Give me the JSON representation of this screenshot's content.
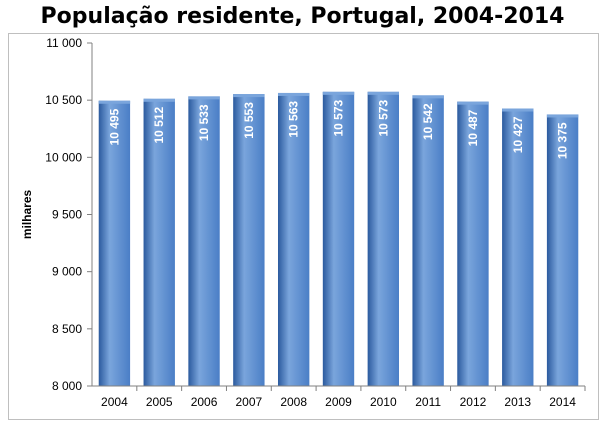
{
  "chart_data": {
    "type": "bar",
    "title": "População residente, Portugal, 2004-2014",
    "xlabel": "",
    "ylabel": "milhares",
    "ylim": [
      8000,
      11000
    ],
    "yticks": [
      8000,
      8500,
      9000,
      9500,
      10000,
      10500,
      11000
    ],
    "ytick_labels": [
      "8 000",
      "8 500",
      "9 000",
      "9 500",
      "10 000",
      "10 500",
      "11 000"
    ],
    "categories": [
      "2004",
      "2005",
      "2006",
      "2007",
      "2008",
      "2009",
      "2010",
      "2011",
      "2012",
      "2013",
      "2014"
    ],
    "values": [
      10495,
      10512,
      10533,
      10553,
      10563,
      10573,
      10573,
      10542,
      10487,
      10427,
      10375
    ],
    "data_labels": [
      "10 495",
      "10 512",
      "10 533",
      "10 553",
      "10 563",
      "10 573",
      "10 573",
      "10 542",
      "10 487",
      "10 427",
      "10 375"
    ],
    "grid": false,
    "legend": "none",
    "colors": {
      "bar": "#4a7ec6",
      "bar_dark": "#2b5a9e",
      "bar_light": "#7aa5dc",
      "axis": "#808080"
    }
  }
}
